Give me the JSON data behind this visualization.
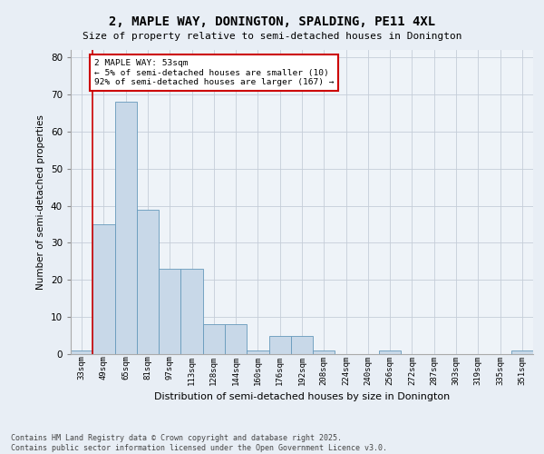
{
  "title": "2, MAPLE WAY, DONINGTON, SPALDING, PE11 4XL",
  "subtitle": "Size of property relative to semi-detached houses in Donington",
  "xlabel": "Distribution of semi-detached houses by size in Donington",
  "ylabel": "Number of semi-detached properties",
  "bins": [
    "33sqm",
    "49sqm",
    "65sqm",
    "81sqm",
    "97sqm",
    "113sqm",
    "128sqm",
    "144sqm",
    "160sqm",
    "176sqm",
    "192sqm",
    "208sqm",
    "224sqm",
    "240sqm",
    "256sqm",
    "272sqm",
    "287sqm",
    "303sqm",
    "319sqm",
    "335sqm",
    "351sqm"
  ],
  "values": [
    1,
    35,
    68,
    39,
    23,
    23,
    8,
    8,
    1,
    5,
    5,
    1,
    0,
    0,
    1,
    0,
    0,
    0,
    0,
    0,
    1
  ],
  "bar_color": "#c8d8e8",
  "bar_edge_color": "#6699bb",
  "annotation_title": "2 MAPLE WAY: 53sqm",
  "annotation_line1": "← 5% of semi-detached houses are smaller (10)",
  "annotation_line2": "92% of semi-detached houses are larger (167) →",
  "annotation_box_color": "#ffffff",
  "annotation_border_color": "#cc0000",
  "red_line_color": "#cc0000",
  "ylim": [
    0,
    82
  ],
  "yticks": [
    0,
    10,
    20,
    30,
    40,
    50,
    60,
    70,
    80
  ],
  "footer1": "Contains HM Land Registry data © Crown copyright and database right 2025.",
  "footer2": "Contains public sector information licensed under the Open Government Licence v3.0.",
  "bg_color": "#e8eef5",
  "plot_bg_color": "#eef3f8",
  "grid_color": "#c5cdd8"
}
